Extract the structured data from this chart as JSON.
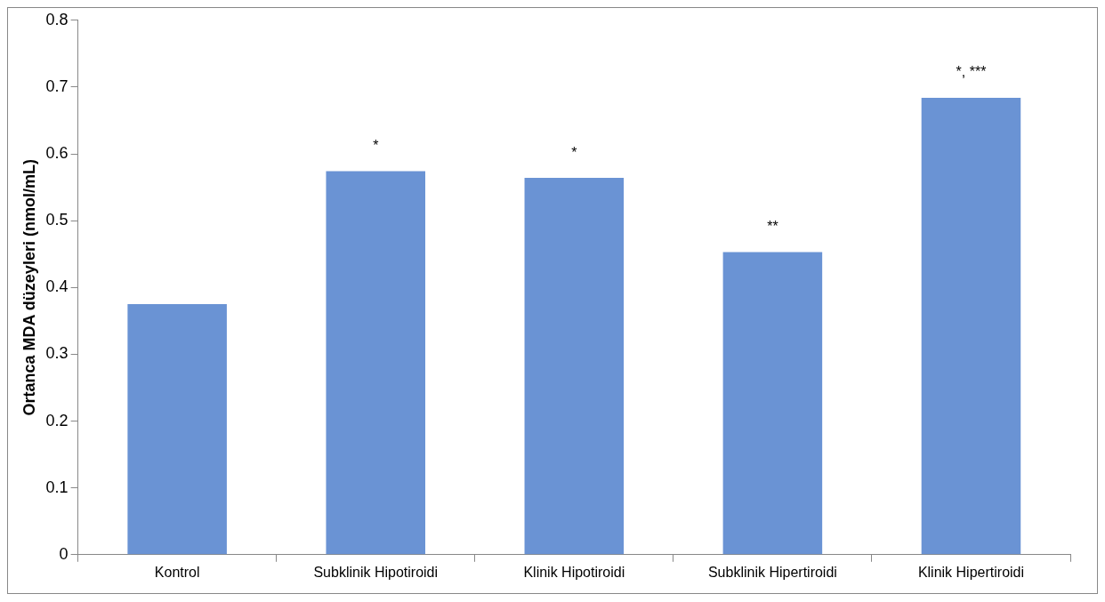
{
  "chart_data": {
    "type": "bar",
    "ylabel": "Ortanca MDA düzeyleri (nmol/mL)",
    "categories": [
      "Kontrol",
      "Subklinik Hipotiroidi",
      "Klinik Hipotiroidi",
      "Subklinik Hipertiroidi",
      "Klinik Hipertiroidi"
    ],
    "values": [
      0.375,
      0.574,
      0.564,
      0.453,
      0.684
    ],
    "color": "#6a93d4",
    "ylim": [
      0,
      0.8
    ],
    "yticks": [
      0,
      0.1,
      0.2,
      0.3,
      0.4,
      0.5,
      0.6,
      0.7,
      0.8
    ],
    "grid": false,
    "legend": false,
    "annotations": [
      {
        "text": "*",
        "x": "Subklinik Hipotiroidi",
        "y": 0.574
      },
      {
        "text": "*",
        "x": "Klinik Hipotiroidi",
        "y": 0.564
      },
      {
        "text": "**",
        "x": "Subklinik Hipertiroidi",
        "y": 0.453
      },
      {
        "text": "*, ***",
        "x": "Klinik Hipertiroidi",
        "y": 0.684
      }
    ]
  }
}
